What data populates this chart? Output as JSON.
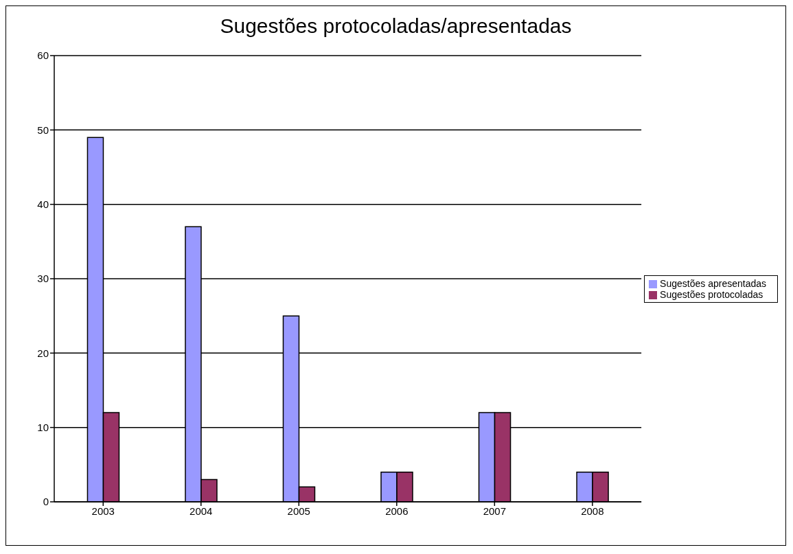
{
  "chart_data": {
    "type": "bar",
    "title": "Sugestões protocoladas/apresentadas",
    "categories": [
      "2003",
      "2004",
      "2005",
      "2006",
      "2007",
      "2008"
    ],
    "series": [
      {
        "name": "Sugestões apresentadas",
        "color": "#9999ff",
        "values": [
          49,
          37,
          25,
          4,
          12,
          4
        ]
      },
      {
        "name": "Sugestões protocoladas",
        "color": "#993366",
        "values": [
          12,
          3,
          2,
          4,
          12,
          4
        ]
      }
    ],
    "ylim": [
      0,
      60
    ],
    "yticks": [
      0,
      10,
      20,
      30,
      40,
      50,
      60
    ],
    "grid": "y",
    "legend": "right"
  }
}
